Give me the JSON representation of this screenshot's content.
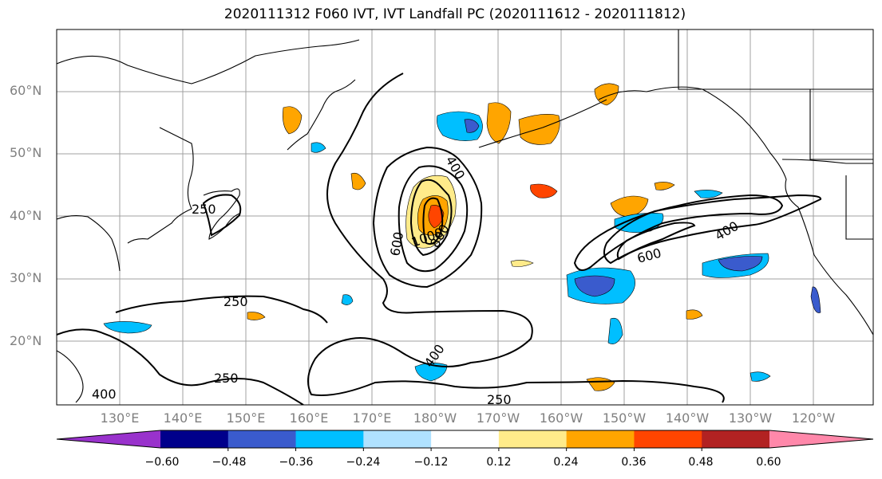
{
  "title": "2020111312 F060 IVT, IVT Landfall PC (2020111612 - 2020111812)",
  "lat_labels": [
    "60°N",
    "50°N",
    "40°N",
    "30°N",
    "20°N"
  ],
  "lon_labels": [
    "130°E",
    "140°E",
    "150°E",
    "160°E",
    "170°E",
    "180°W",
    "170°W",
    "160°W",
    "150°W",
    "140°W",
    "130°W",
    "120°W"
  ],
  "contour_labels": [
    "250",
    "250",
    "250",
    "250",
    "400",
    "400",
    "400",
    "400",
    "600",
    "600",
    "800",
    "1000"
  ],
  "colorbar": {
    "ticks": [
      "−0.60",
      "−0.48",
      "−0.36",
      "−0.24",
      "−0.12",
      "0.12",
      "0.24",
      "0.36",
      "0.48",
      "0.60"
    ],
    "colors": [
      "#9932cc",
      "#00008b",
      "#3a5bcd",
      "#00bfff",
      "#b0e2ff",
      "#ffffff",
      "#ffeb8a",
      "#ffa500",
      "#ff4500",
      "#b22222",
      "#ff88aa"
    ]
  }
}
